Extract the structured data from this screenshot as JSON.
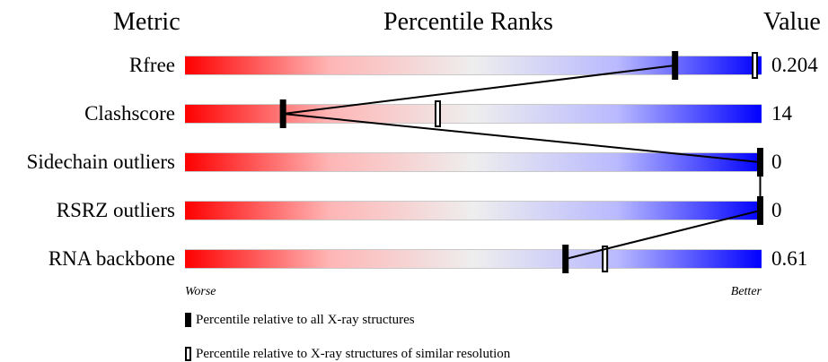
{
  "headers": {
    "metric": "Metric",
    "percentile": "Percentile Ranks",
    "value": "Value"
  },
  "axis": {
    "worse": "Worse",
    "better": "Better"
  },
  "legend": {
    "all": "Percentile relative to all X-ray structures",
    "similar": "Percentile relative to X-ray structures of similar resolution"
  },
  "chart_data": {
    "type": "bar",
    "title": "Percentile Ranks",
    "xlim": [
      0,
      100
    ],
    "metrics": [
      {
        "label": "Rfree",
        "value": "0.204",
        "pct_all": 85,
        "pct_similar": 99
      },
      {
        "label": "Clashscore",
        "value": "14",
        "pct_all": 17,
        "pct_similar": 44
      },
      {
        "label": "Sidechain outliers",
        "value": "0",
        "pct_all": 100,
        "pct_similar": null
      },
      {
        "label": "RSRZ outliers",
        "value": "0",
        "pct_all": 100,
        "pct_similar": null
      },
      {
        "label": "RNA backbone",
        "value": "0.61",
        "pct_all": 66,
        "pct_similar": 73
      }
    ]
  }
}
